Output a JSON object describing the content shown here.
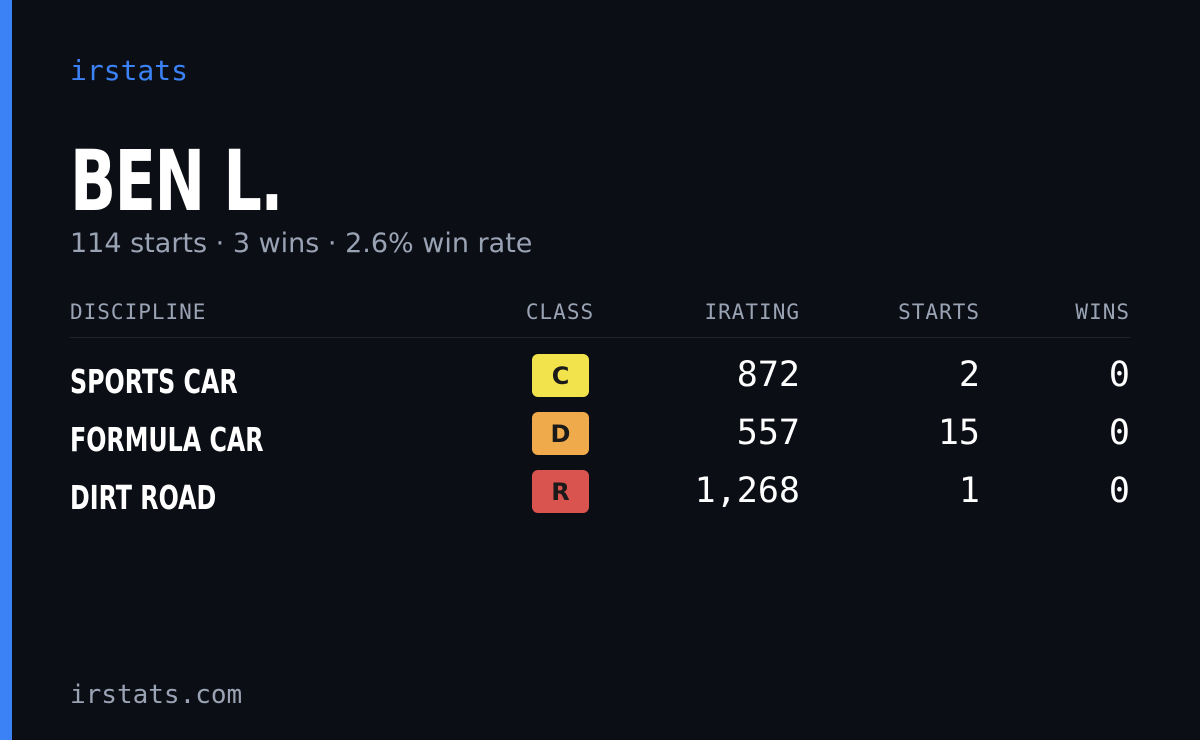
{
  "brand": "irstats",
  "driver": {
    "name": "BEN L.",
    "summary": "114 starts · 3 wins · 2.6% win rate"
  },
  "table": {
    "headers": [
      "DISCIPLINE",
      "CLASS",
      "IRATING",
      "STARTS",
      "WINS"
    ],
    "rows": [
      {
        "discipline": "SPORTS CAR",
        "class": "C",
        "class_color": "#f2e24c",
        "irating": "872",
        "starts": "2",
        "wins": "0"
      },
      {
        "discipline": "FORMULA CAR",
        "class": "D",
        "class_color": "#efab4b",
        "irating": "557",
        "starts": "15",
        "wins": "0"
      },
      {
        "discipline": "DIRT ROAD",
        "class": "R",
        "class_color": "#d9534f",
        "irating": "1,268",
        "starts": "1",
        "wins": "0"
      }
    ]
  },
  "footer": "irstats.com"
}
